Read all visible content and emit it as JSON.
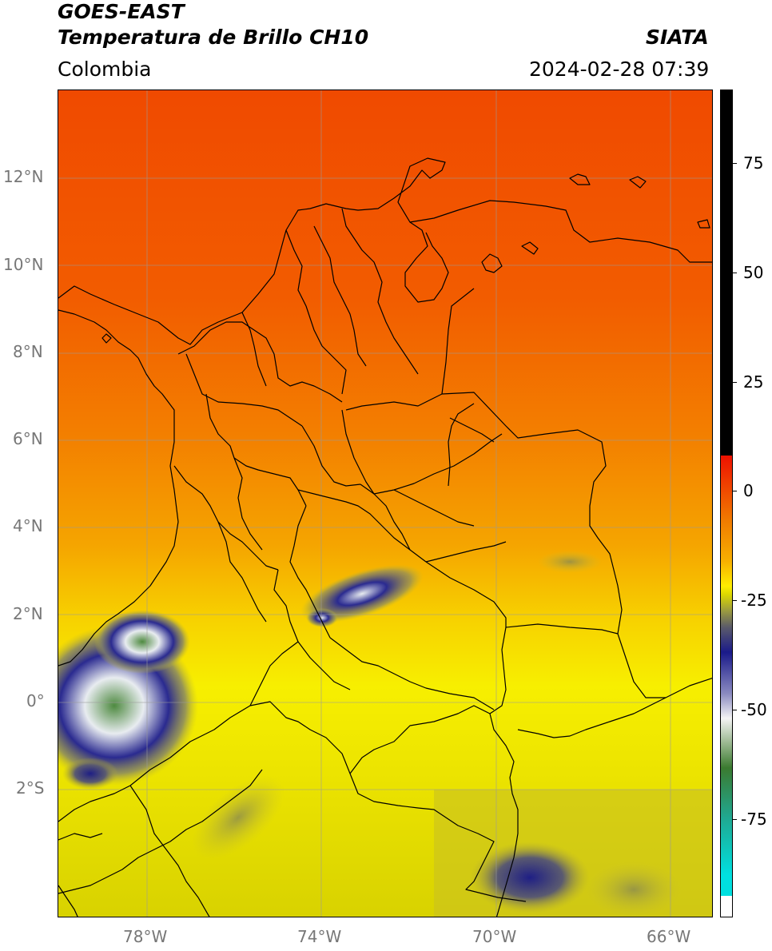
{
  "header": {
    "satellite": "GOES-EAST",
    "product": "Temperatura de Brillo CH10",
    "region": "Colombia",
    "agency": "SIATA",
    "datetime": "2024-02-28 07:39"
  },
  "axes": {
    "lat_labels": [
      "12°N",
      "10°N",
      "8°N",
      "6°N",
      "4°N",
      "2°N",
      "0°",
      "2°S"
    ],
    "lon_labels": [
      "78°W",
      "74°W",
      "70°W",
      "66°W"
    ]
  },
  "colorbar": {
    "tick_labels": [
      "75",
      "50",
      "25",
      "0",
      "-25",
      "-50",
      "-75"
    ],
    "colors": {
      "black": "#000000",
      "red": "#ee1100",
      "orange": "#f07a00",
      "yellow": "#ffee00",
      "olive": "#9a9a40",
      "navy": "#1a1a8a",
      "white": "#f4f4f4",
      "green": "#3b7a30",
      "teal": "#20a890",
      "cyan": "#00e0e0"
    }
  },
  "map": {
    "colors": {
      "warm": "#f25000",
      "mid": "#f59a00",
      "cool": "#e8e000",
      "cloud_cold": "#1f1f85",
      "cloud_white": "#e8ecf0",
      "cloud_green": "#5a8a4a"
    }
  }
}
